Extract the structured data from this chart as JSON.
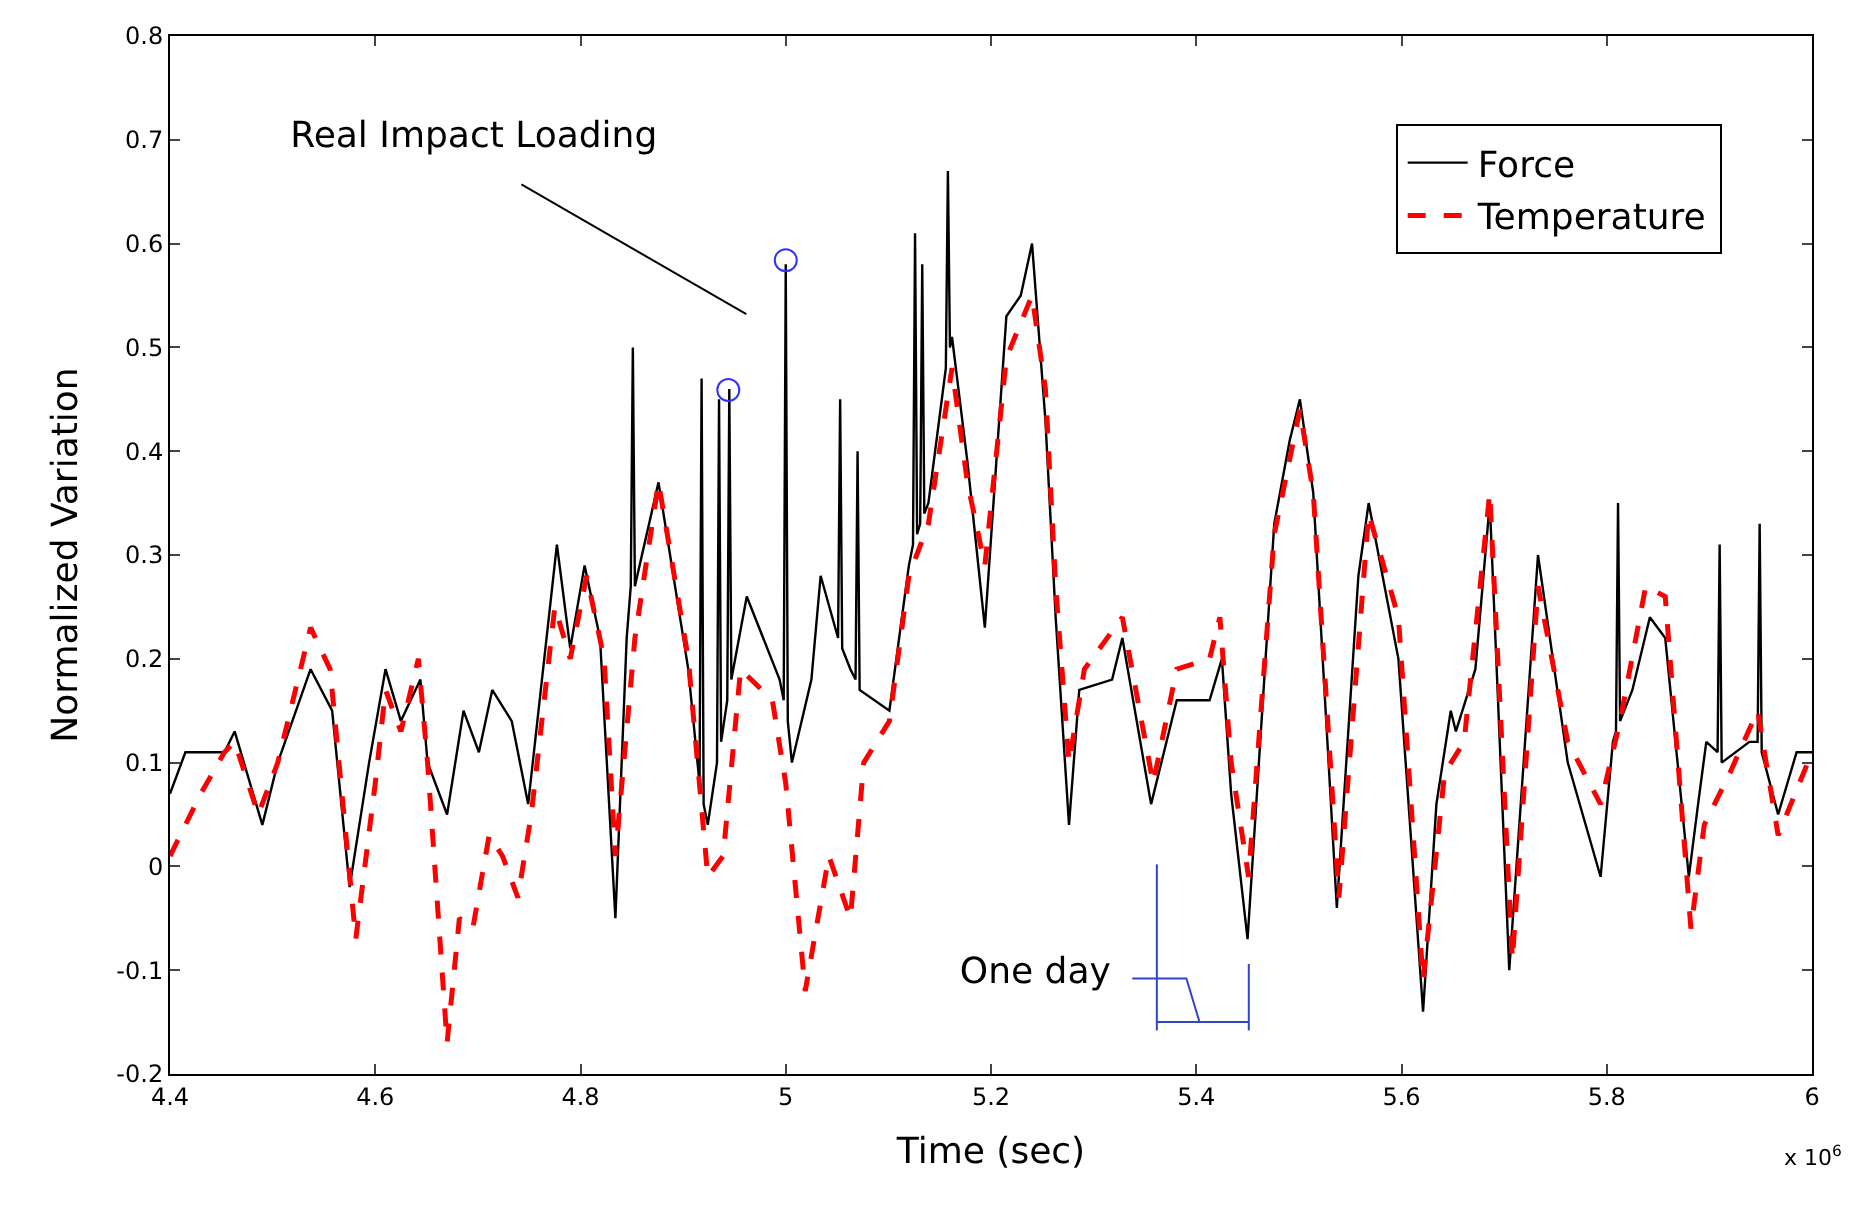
{
  "chart_data": {
    "type": "line",
    "xlabel": "Time (sec)",
    "ylabel": "Normalized Variation",
    "annotations": [
      "Real Impact Loading",
      "One day",
      "x 10$^{6}$"
    ],
    "xlim": [
      4.4,
      6
    ],
    "xticks": [
      4.4,
      4.6,
      4.8,
      5,
      5.2,
      5.4,
      5.6,
      5.8,
      6
    ],
    "ylim": [
      -0.2,
      0.8
    ],
    "yticks": [
      -0.2,
      -0.1,
      0,
      0.1,
      0.2,
      0.3,
      0.4,
      0.5,
      0.6,
      0.7,
      0.8
    ],
    "grid": false,
    "legend": "top right",
    "marker": "none",
    "series": [
      {
        "name": "Force",
        "color": "#000000",
        "line_style": "solid",
        "x": [
          4.4,
          4.415,
          4.453,
          4.463,
          4.49,
          4.505,
          4.537,
          4.558,
          4.575,
          4.594,
          4.61,
          4.625,
          4.644,
          4.651,
          4.67,
          4.686,
          4.701,
          4.714,
          4.733,
          4.749,
          4.777,
          4.79,
          4.804,
          4.819,
          4.834,
          4.845,
          4.849,
          4.851,
          4.853,
          4.876,
          4.905,
          4.916,
          4.918,
          4.92,
          4.924,
          4.933,
          4.935,
          4.937,
          4.943,
          4.945,
          4.947,
          4.962,
          4.994,
          4.998,
          5.0,
          5.002,
          5.006,
          5.025,
          5.034,
          5.051,
          5.053,
          5.055,
          5.063,
          5.068,
          5.07,
          5.072,
          5.101,
          5.12,
          5.124,
          5.126,
          5.128,
          5.131,
          5.133,
          5.135,
          5.139,
          5.156,
          5.158,
          5.16,
          5.162,
          5.177,
          5.194,
          5.215,
          5.229,
          5.24,
          5.253,
          5.263,
          5.276,
          5.286,
          5.318,
          5.328,
          5.356,
          5.381,
          5.413,
          5.425,
          5.434,
          5.45,
          5.476,
          5.491,
          5.501,
          5.514,
          5.537,
          5.558,
          5.568,
          5.597,
          5.621,
          5.634,
          5.648,
          5.653,
          5.672,
          5.686,
          5.705,
          5.733,
          5.762,
          5.794,
          5.806,
          5.809,
          5.811,
          5.813,
          5.825,
          5.842,
          5.857,
          5.88,
          5.889,
          5.897,
          5.908,
          5.91,
          5.912,
          5.939,
          5.947,
          5.949,
          5.951,
          5.967,
          5.985,
          6.0
        ],
        "values": [
          0.07,
          0.11,
          0.11,
          0.13,
          0.04,
          0.1,
          0.19,
          0.15,
          -0.02,
          0.1,
          0.19,
          0.14,
          0.18,
          0.1,
          0.05,
          0.15,
          0.11,
          0.17,
          0.14,
          0.06,
          0.31,
          0.21,
          0.29,
          0.22,
          -0.05,
          0.22,
          0.27,
          0.5,
          0.27,
          0.37,
          0.19,
          0.08,
          0.47,
          0.06,
          0.04,
          0.1,
          0.45,
          0.12,
          0.16,
          0.46,
          0.18,
          0.26,
          0.18,
          0.16,
          0.58,
          0.14,
          0.1,
          0.18,
          0.28,
          0.22,
          0.45,
          0.21,
          0.19,
          0.18,
          0.4,
          0.17,
          0.15,
          0.29,
          0.31,
          0.61,
          0.32,
          0.33,
          0.58,
          0.34,
          0.35,
          0.48,
          0.67,
          0.5,
          0.51,
          0.39,
          0.23,
          0.53,
          0.55,
          0.6,
          0.43,
          0.24,
          0.04,
          0.17,
          0.18,
          0.22,
          0.06,
          0.16,
          0.16,
          0.2,
          0.07,
          -0.07,
          0.33,
          0.41,
          0.45,
          0.36,
          -0.04,
          0.28,
          0.35,
          0.2,
          -0.14,
          0.06,
          0.15,
          0.13,
          0.19,
          0.35,
          -0.1,
          0.3,
          0.1,
          -0.01,
          0.12,
          0.13,
          0.35,
          0.14,
          0.17,
          0.24,
          0.22,
          -0.01,
          0.06,
          0.12,
          0.11,
          0.31,
          0.1,
          0.12,
          0.12,
          0.33,
          0.11,
          0.05,
          0.11,
          0.11
        ]
      },
      {
        "name": "Temperature",
        "color": "#ff0000",
        "line_style": "dashed",
        "x": [
          4.4,
          4.43,
          4.453,
          4.463,
          4.486,
          4.505,
          4.537,
          4.556,
          4.581,
          4.6,
          4.61,
          4.625,
          4.642,
          4.651,
          4.67,
          4.682,
          4.695,
          4.711,
          4.724,
          4.739,
          4.752,
          4.775,
          4.79,
          4.806,
          4.823,
          4.834,
          4.853,
          4.876,
          4.905,
          4.924,
          4.939,
          4.956,
          4.987,
          5.0,
          5.019,
          5.042,
          5.063,
          5.076,
          5.101,
          5.12,
          5.139,
          5.162,
          5.177,
          5.194,
          5.215,
          5.24,
          5.253,
          5.263,
          5.276,
          5.291,
          5.328,
          5.358,
          5.381,
          5.413,
          5.423,
          5.434,
          5.451,
          5.476,
          5.501,
          5.514,
          5.539,
          5.568,
          5.597,
          5.621,
          5.642,
          5.661,
          5.686,
          5.708,
          5.733,
          5.762,
          5.794,
          5.813,
          5.838,
          5.857,
          5.882,
          5.895,
          5.92,
          5.947,
          5.967,
          6.0
        ],
        "values": [
          0.01,
          0.07,
          0.11,
          0.12,
          0.05,
          0.1,
          0.23,
          0.19,
          -0.07,
          0.08,
          0.17,
          0.13,
          0.2,
          0.1,
          -0.17,
          -0.05,
          -0.06,
          0.03,
          0.01,
          -0.03,
          0.05,
          0.25,
          0.2,
          0.28,
          0.2,
          0.01,
          0.22,
          0.37,
          0.2,
          -0.01,
          0.01,
          0.19,
          0.16,
          0.08,
          -0.12,
          0.01,
          -0.05,
          0.1,
          0.14,
          0.28,
          0.33,
          0.48,
          0.37,
          0.29,
          0.49,
          0.55,
          0.46,
          0.27,
          0.1,
          0.19,
          0.24,
          0.08,
          0.19,
          0.2,
          0.24,
          0.1,
          -0.01,
          0.32,
          0.44,
          0.36,
          -0.03,
          0.34,
          0.24,
          -0.11,
          0.09,
          0.12,
          0.36,
          -0.09,
          0.27,
          0.12,
          0.06,
          0.14,
          0.27,
          0.26,
          -0.06,
          0.04,
          0.09,
          0.15,
          0.03,
          0.11
        ]
      }
    ]
  }
}
